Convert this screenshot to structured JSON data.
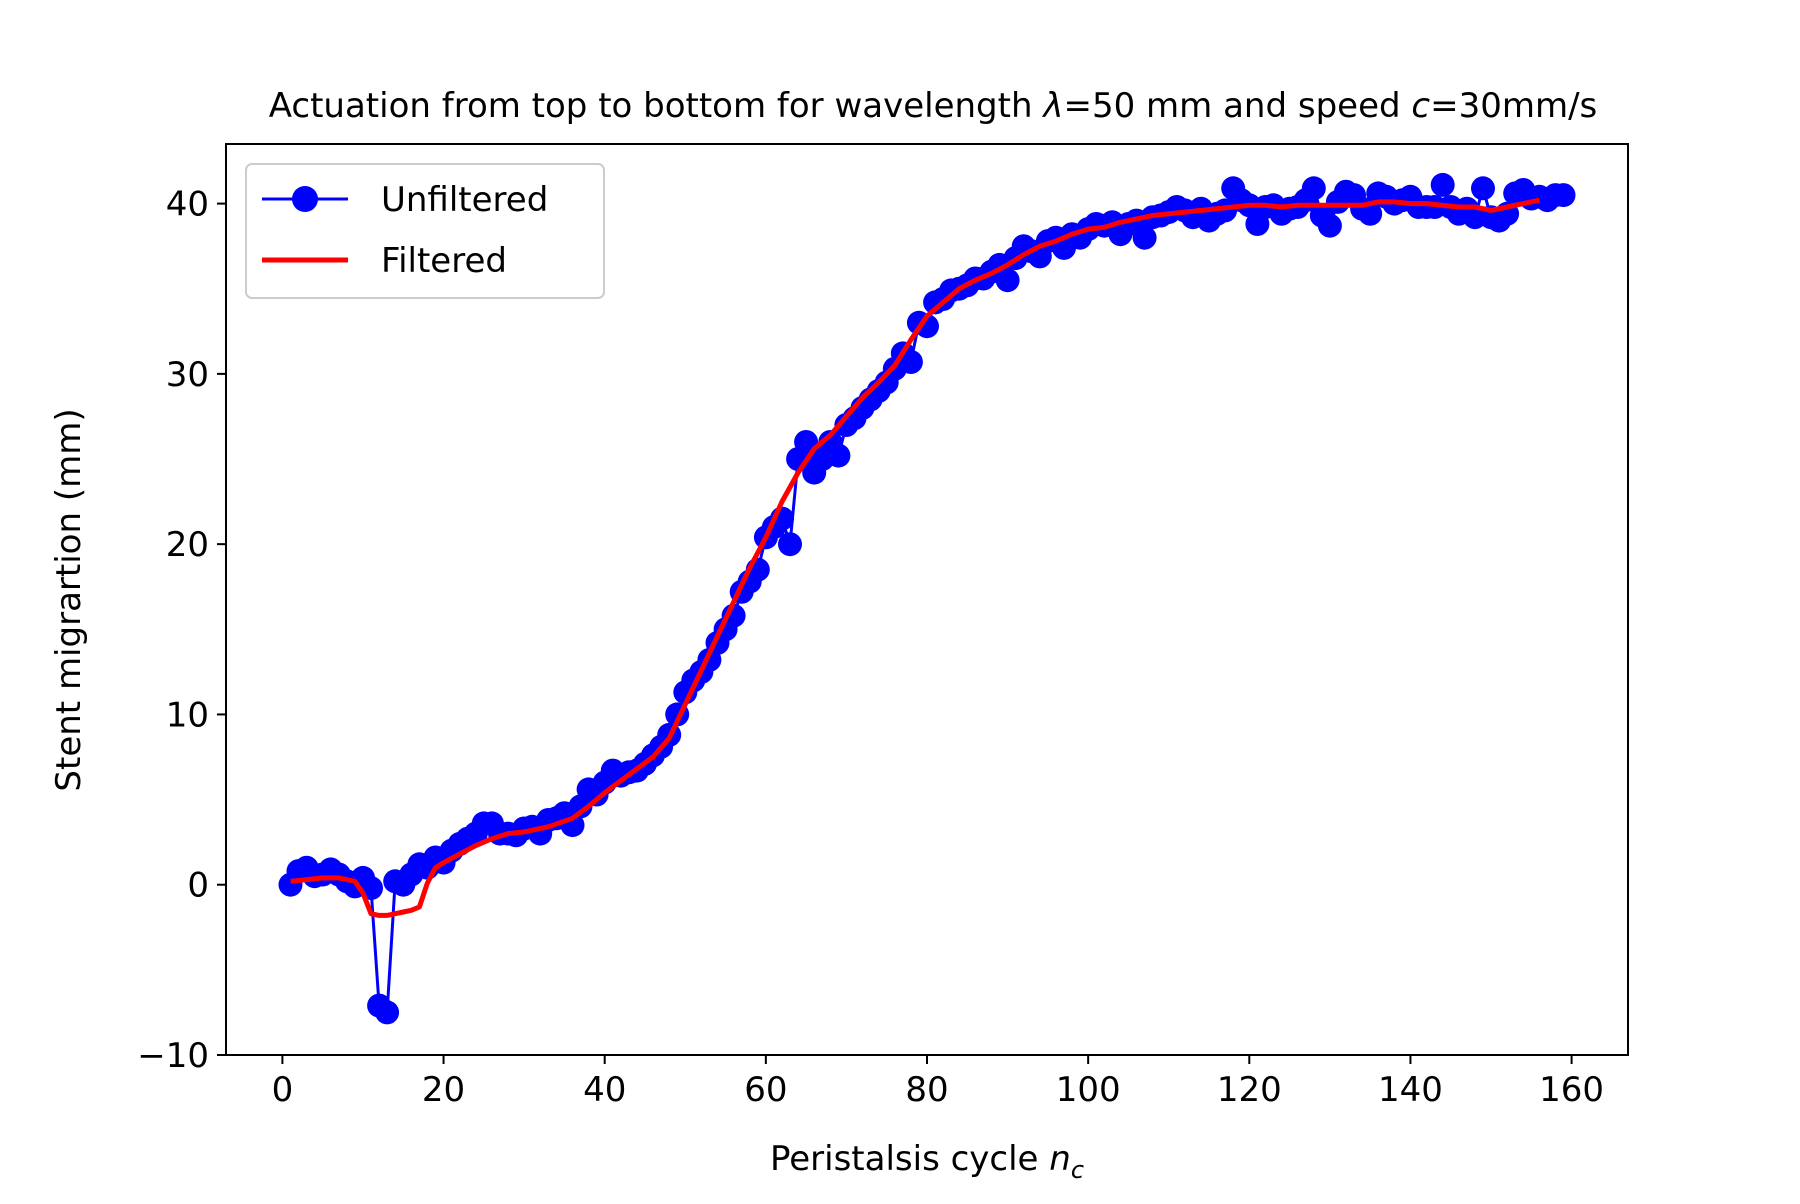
{
  "chart_data": {
    "type": "line",
    "title": "Actuation from top to bottom for wavelength λ=50 mm and speed c=30mm/s",
    "title_parts": {
      "prefix": "Actuation from top to bottom for wavelength ",
      "lambda": "λ",
      "middle": "=50 mm and speed ",
      "c": "c",
      "suffix": "=30mm/s"
    },
    "xlabel": "Peristalsis cycle n_c",
    "xlabel_parts": {
      "text": "Peristalsis cycle ",
      "n": "n",
      "sub": "c"
    },
    "ylabel": "Stent migrartion (mm)",
    "xlim": [
      -7,
      167
    ],
    "ylim": [
      -10,
      43.5
    ],
    "x_ticks": [
      0,
      20,
      40,
      60,
      80,
      100,
      120,
      140,
      160
    ],
    "x_tick_labels": [
      "0",
      "20",
      "40",
      "60",
      "80",
      "100",
      "120",
      "140",
      "160"
    ],
    "y_ticks": [
      -10,
      0,
      10,
      20,
      30,
      40
    ],
    "y_tick_labels": [
      "−10",
      "0",
      "10",
      "20",
      "30",
      "40"
    ],
    "grid": false,
    "legend_position": "top-left",
    "legend": [
      {
        "label": "Unfiltered",
        "color": "#0000ff",
        "style": "line-marker"
      },
      {
        "label": "Filtered",
        "color": "#ff0000",
        "style": "line"
      }
    ],
    "series": [
      {
        "name": "Unfiltered",
        "color": "#0000ff",
        "marker": "circle",
        "x": [
          1,
          2,
          3,
          4,
          5,
          6,
          7,
          8,
          9,
          10,
          11,
          12,
          13,
          14,
          15,
          16,
          17,
          18,
          19,
          20,
          21,
          22,
          23,
          24,
          25,
          26,
          27,
          28,
          29,
          30,
          31,
          32,
          33,
          34,
          35,
          36,
          37,
          38,
          39,
          40,
          41,
          42,
          43,
          44,
          45,
          46,
          47,
          48,
          49,
          50,
          51,
          52,
          53,
          54,
          55,
          56,
          57,
          58,
          59,
          60,
          61,
          62,
          63,
          64,
          65,
          66,
          67,
          68,
          69,
          70,
          71,
          72,
          73,
          74,
          75,
          76,
          77,
          78,
          79,
          80,
          81,
          82,
          83,
          84,
          85,
          86,
          87,
          88,
          89,
          90,
          91,
          92,
          93,
          94,
          95,
          96,
          97,
          98,
          99,
          100,
          101,
          102,
          103,
          104,
          105,
          106,
          107,
          108,
          109,
          110,
          111,
          112,
          113,
          114,
          115,
          116,
          117,
          118,
          119,
          120,
          121,
          122,
          123,
          124,
          125,
          126,
          127,
          128,
          129,
          130,
          131,
          132,
          133,
          134,
          135,
          136,
          137,
          138,
          139,
          140,
          141,
          142,
          143,
          144,
          145,
          146,
          147,
          148,
          149,
          150,
          151,
          152,
          153,
          154,
          155,
          156,
          157,
          158,
          159
        ],
        "y": [
          0.0,
          0.8,
          1.0,
          0.5,
          0.6,
          0.9,
          0.6,
          0.2,
          -0.1,
          0.4,
          -0.2,
          -7.1,
          -7.5,
          0.2,
          0.0,
          0.6,
          1.2,
          1.0,
          1.6,
          1.3,
          2.0,
          2.4,
          2.7,
          3.0,
          3.6,
          3.6,
          3.0,
          3.0,
          2.9,
          3.3,
          3.4,
          3.0,
          3.8,
          3.9,
          4.2,
          3.5,
          4.6,
          5.6,
          5.3,
          6.0,
          6.7,
          6.4,
          6.6,
          6.7,
          7.1,
          7.6,
          8.1,
          8.8,
          10.0,
          11.3,
          12.0,
          12.5,
          13.2,
          14.2,
          15.0,
          15.8,
          17.2,
          17.8,
          18.5,
          20.4,
          21.0,
          21.5,
          20.0,
          25.0,
          26.0,
          24.2,
          25.0,
          26.0,
          25.2,
          27.0,
          27.4,
          28.0,
          28.5,
          29.0,
          29.5,
          30.3,
          31.2,
          30.7,
          33.0,
          32.8,
          34.2,
          34.4,
          34.9,
          35.0,
          35.2,
          35.6,
          35.6,
          36.0,
          36.4,
          35.5,
          36.8,
          37.5,
          37.2,
          36.9,
          37.8,
          38.0,
          37.4,
          38.2,
          38.0,
          38.5,
          38.8,
          38.7,
          38.9,
          38.2,
          38.8,
          39.0,
          38.0,
          39.2,
          39.3,
          39.5,
          39.8,
          39.6,
          39.2,
          39.7,
          39.0,
          39.4,
          39.6,
          40.9,
          40.2,
          39.9,
          38.8,
          39.8,
          39.9,
          39.4,
          39.7,
          39.8,
          40.2,
          40.9,
          39.3,
          38.7,
          40.1,
          40.7,
          40.5,
          39.7,
          39.4,
          40.6,
          40.4,
          40.0,
          40.2,
          40.4,
          39.8,
          39.8,
          39.8,
          41.1,
          39.8,
          39.4,
          39.7,
          39.2,
          40.9,
          39.2,
          39.0,
          39.4,
          40.6,
          40.8,
          40.3,
          40.4,
          40.2,
          40.5,
          40.5
        ]
      },
      {
        "name": "Filtered",
        "color": "#ff0000",
        "marker": "none",
        "x": [
          1,
          3,
          5,
          7,
          9,
          10,
          11,
          12,
          13,
          14,
          15,
          16,
          17,
          18,
          19,
          20,
          22,
          24,
          26,
          28,
          30,
          33,
          36,
          38,
          40,
          42,
          44,
          46,
          48,
          50,
          52,
          54,
          56,
          58,
          60,
          62,
          64,
          66,
          68,
          70,
          72,
          74,
          76,
          78,
          80,
          82,
          84,
          86,
          88,
          90,
          92,
          94,
          96,
          98,
          100,
          102,
          104,
          106,
          108,
          110,
          112,
          114,
          116,
          118,
          120,
          122,
          124,
          126,
          128,
          130,
          132,
          134,
          136,
          138,
          140,
          142,
          144,
          146,
          148,
          150,
          152,
          154,
          156
        ],
        "y": [
          0.2,
          0.3,
          0.4,
          0.4,
          0.2,
          -0.5,
          -1.7,
          -1.8,
          -1.8,
          -1.7,
          -1.6,
          -1.5,
          -1.3,
          0.1,
          1.0,
          1.3,
          1.8,
          2.3,
          2.7,
          3.0,
          3.1,
          3.4,
          3.9,
          4.6,
          5.4,
          6.1,
          6.8,
          7.5,
          8.6,
          10.6,
          12.6,
          14.6,
          16.6,
          18.6,
          20.4,
          22.5,
          24.2,
          25.6,
          26.4,
          27.5,
          28.6,
          29.5,
          30.5,
          32.0,
          33.4,
          34.2,
          35.0,
          35.5,
          35.9,
          36.4,
          37.0,
          37.5,
          37.8,
          38.2,
          38.5,
          38.6,
          38.9,
          39.1,
          39.3,
          39.4,
          39.5,
          39.6,
          39.7,
          39.8,
          39.9,
          39.9,
          39.8,
          39.9,
          39.9,
          39.9,
          39.9,
          39.9,
          40.1,
          40.1,
          40.0,
          40.0,
          39.9,
          39.8,
          39.8,
          39.6,
          39.8,
          40.0,
          40.2
        ]
      }
    ]
  }
}
